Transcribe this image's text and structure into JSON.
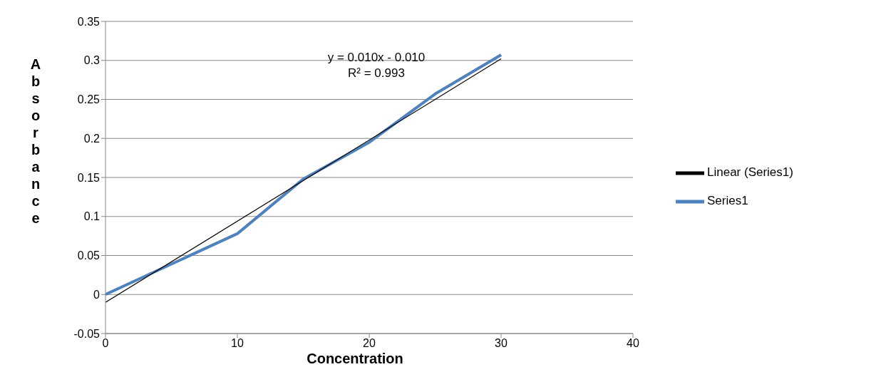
{
  "chart_data": {
    "type": "line",
    "xlabel": "Concentration",
    "ylabel": "Absorbance",
    "annotations": [
      "y = 0.010x - 0.010",
      "R² = 0.993"
    ],
    "series": [
      {
        "name": "Series1",
        "color": "#4f81bd",
        "x": [
          0,
          10,
          15,
          20,
          25,
          30
        ],
        "values": [
          0,
          0.078,
          0.148,
          0.195,
          0.257,
          0.307
        ]
      },
      {
        "name": "Linear (Series1)",
        "type": "line",
        "color": "#000000",
        "x": [
          0,
          30
        ],
        "values": [
          -0.01,
          0.302
        ]
      }
    ],
    "xlim": [
      0,
      40
    ],
    "xticks": [
      0,
      10,
      20,
      30,
      40
    ],
    "ylim": [
      -0.05,
      0.35
    ],
    "yticks": [
      -0.05,
      0,
      0.05,
      0.1,
      0.15,
      0.2,
      0.25,
      0.3,
      0.35
    ],
    "grid": "y",
    "legend": "right",
    "marker": "none",
    "line_style": "solid"
  }
}
